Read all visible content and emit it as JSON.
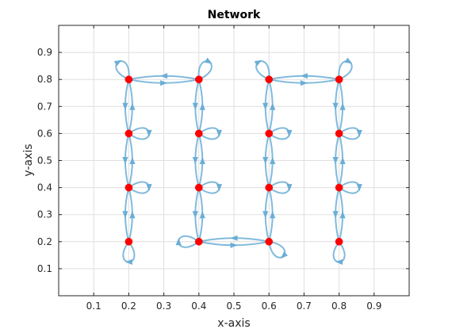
{
  "chart_data": {
    "type": "network",
    "title": "Network",
    "xlabel": "x-axis",
    "ylabel": "y-axis",
    "xlim": [
      0,
      1
    ],
    "ylim": [
      0,
      1
    ],
    "xticks": [
      0.1,
      0.2,
      0.3,
      0.4,
      0.5,
      0.6,
      0.7,
      0.8,
      0.9
    ],
    "yticks": [
      0.1,
      0.2,
      0.3,
      0.4,
      0.5,
      0.6,
      0.7,
      0.8,
      0.9
    ],
    "xtick_labels": [
      "0.1",
      "0.2",
      "0.3",
      "0.4",
      "0.5",
      "0.6",
      "0.7",
      "0.8",
      "0.9"
    ],
    "ytick_labels": [
      "0.1",
      "0.2",
      "0.3",
      "0.4",
      "0.5",
      "0.6",
      "0.7",
      "0.8",
      "0.9"
    ],
    "grid": true,
    "node_color": "#ff0000",
    "edge_color": "#6aaed6",
    "nodes": [
      {
        "id": 1,
        "x": 0.2,
        "y": 0.8
      },
      {
        "id": 2,
        "x": 0.4,
        "y": 0.8
      },
      {
        "id": 3,
        "x": 0.6,
        "y": 0.8
      },
      {
        "id": 4,
        "x": 0.8,
        "y": 0.8
      },
      {
        "id": 5,
        "x": 0.2,
        "y": 0.6
      },
      {
        "id": 6,
        "x": 0.4,
        "y": 0.6
      },
      {
        "id": 7,
        "x": 0.6,
        "y": 0.6
      },
      {
        "id": 8,
        "x": 0.8,
        "y": 0.6
      },
      {
        "id": 9,
        "x": 0.2,
        "y": 0.4
      },
      {
        "id": 10,
        "x": 0.4,
        "y": 0.4
      },
      {
        "id": 11,
        "x": 0.6,
        "y": 0.4
      },
      {
        "id": 12,
        "x": 0.8,
        "y": 0.4
      },
      {
        "id": 13,
        "x": 0.2,
        "y": 0.2
      },
      {
        "id": 14,
        "x": 0.4,
        "y": 0.2
      },
      {
        "id": 15,
        "x": 0.6,
        "y": 0.2
      },
      {
        "id": 16,
        "x": 0.8,
        "y": 0.2
      }
    ],
    "edges": [
      {
        "from": 1,
        "to": 2
      },
      {
        "from": 2,
        "to": 1
      },
      {
        "from": 3,
        "to": 4
      },
      {
        "from": 4,
        "to": 3
      },
      {
        "from": 14,
        "to": 15
      },
      {
        "from": 15,
        "to": 14
      },
      {
        "from": 1,
        "to": 5
      },
      {
        "from": 5,
        "to": 1
      },
      {
        "from": 5,
        "to": 9
      },
      {
        "from": 9,
        "to": 5
      },
      {
        "from": 9,
        "to": 13
      },
      {
        "from": 13,
        "to": 9
      },
      {
        "from": 2,
        "to": 6
      },
      {
        "from": 6,
        "to": 2
      },
      {
        "from": 6,
        "to": 10
      },
      {
        "from": 10,
        "to": 6
      },
      {
        "from": 10,
        "to": 14
      },
      {
        "from": 14,
        "to": 10
      },
      {
        "from": 3,
        "to": 7
      },
      {
        "from": 7,
        "to": 3
      },
      {
        "from": 7,
        "to": 11
      },
      {
        "from": 11,
        "to": 7
      },
      {
        "from": 11,
        "to": 15
      },
      {
        "from": 15,
        "to": 11
      },
      {
        "from": 4,
        "to": 8
      },
      {
        "from": 8,
        "to": 4
      },
      {
        "from": 8,
        "to": 12
      },
      {
        "from": 12,
        "to": 8
      },
      {
        "from": 12,
        "to": 16
      },
      {
        "from": 16,
        "to": 12
      }
    ],
    "self_loops": [
      {
        "node": 1,
        "direction": "upper-left"
      },
      {
        "node": 2,
        "direction": "upper-right"
      },
      {
        "node": 3,
        "direction": "upper-left"
      },
      {
        "node": 4,
        "direction": "upper-right"
      },
      {
        "node": 5,
        "direction": "right"
      },
      {
        "node": 6,
        "direction": "right"
      },
      {
        "node": 7,
        "direction": "right"
      },
      {
        "node": 8,
        "direction": "right"
      },
      {
        "node": 9,
        "direction": "right"
      },
      {
        "node": 10,
        "direction": "right"
      },
      {
        "node": 11,
        "direction": "right"
      },
      {
        "node": 12,
        "direction": "right"
      },
      {
        "node": 13,
        "direction": "down"
      },
      {
        "node": 14,
        "direction": "left"
      },
      {
        "node": 15,
        "direction": "lower-right"
      },
      {
        "node": 16,
        "direction": "down"
      }
    ]
  }
}
